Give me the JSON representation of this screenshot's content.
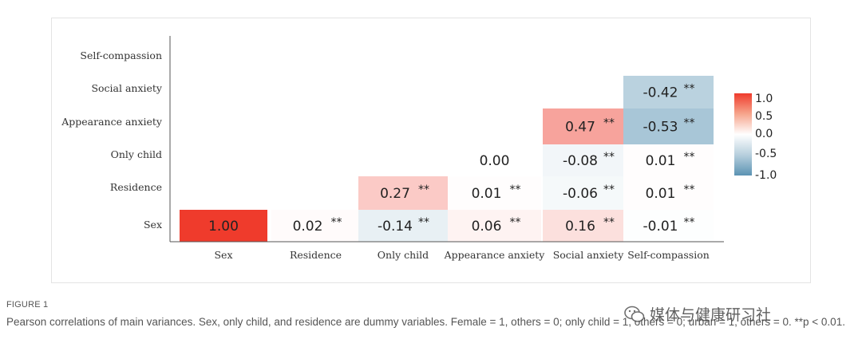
{
  "chart_data": {
    "type": "heatmap",
    "x_labels": [
      "Sex",
      "Residence",
      "Only child",
      "Appearance anxiety",
      "Social anxiety",
      "Self-compassion"
    ],
    "y_labels": [
      "Self-compassion",
      "Social anxiety",
      "Appearance anxiety",
      "Only child",
      "Residence",
      "Sex"
    ],
    "cells": [
      {
        "x": "Sex",
        "y": "Sex",
        "value": 1.0,
        "label": "1.00",
        "sig": ""
      },
      {
        "x": "Residence",
        "y": "Sex",
        "value": 0.02,
        "label": "0.02",
        "sig": "**"
      },
      {
        "x": "Only child",
        "y": "Sex",
        "value": -0.14,
        "label": "-0.14",
        "sig": "**"
      },
      {
        "x": "Appearance anxiety",
        "y": "Sex",
        "value": 0.06,
        "label": "0.06",
        "sig": "**"
      },
      {
        "x": "Social anxiety",
        "y": "Sex",
        "value": 0.16,
        "label": "0.16",
        "sig": "**"
      },
      {
        "x": "Self-compassion",
        "y": "Sex",
        "value": -0.01,
        "label": "-0.01",
        "sig": "**"
      },
      {
        "x": "Only child",
        "y": "Residence",
        "value": 0.27,
        "label": "0.27",
        "sig": "**"
      },
      {
        "x": "Appearance anxiety",
        "y": "Residence",
        "value": 0.01,
        "label": "0.01",
        "sig": "**"
      },
      {
        "x": "Social anxiety",
        "y": "Residence",
        "value": -0.06,
        "label": "-0.06",
        "sig": "**"
      },
      {
        "x": "Self-compassion",
        "y": "Residence",
        "value": 0.01,
        "label": "0.01",
        "sig": "**"
      },
      {
        "x": "Appearance anxiety",
        "y": "Only child",
        "value": 0.0,
        "label": "0.00",
        "sig": ""
      },
      {
        "x": "Social anxiety",
        "y": "Only child",
        "value": -0.08,
        "label": "-0.08",
        "sig": "**"
      },
      {
        "x": "Self-compassion",
        "y": "Only child",
        "value": 0.01,
        "label": "0.01",
        "sig": "**"
      },
      {
        "x": "Social anxiety",
        "y": "Appearance anxiety",
        "value": 0.47,
        "label": "0.47",
        "sig": "**"
      },
      {
        "x": "Self-compassion",
        "y": "Appearance anxiety",
        "value": -0.53,
        "label": "-0.53",
        "sig": "**"
      },
      {
        "x": "Self-compassion",
        "y": "Social anxiety",
        "value": -0.42,
        "label": "-0.42",
        "sig": "**"
      }
    ],
    "colorbar": {
      "ticks": [
        "1.0",
        "0.5",
        "0.0",
        "-0.5",
        "-1.0"
      ],
      "range": [
        -1,
        1
      ],
      "colors": {
        "positive": "#ef3b2c",
        "neutral": "#ffffff",
        "negative": "#5b93b3"
      }
    }
  },
  "caption": {
    "label": "FIGURE 1",
    "text": "Pearson correlations of main variances. Sex, only child, and residence are dummy variables. Female = 1, others = 0; only child = 1, others = 0; urban = 1, others = 0. **p < 0.01."
  },
  "watermark": {
    "text": "媒体与健康研习社",
    "icon": "wechat-icon"
  }
}
